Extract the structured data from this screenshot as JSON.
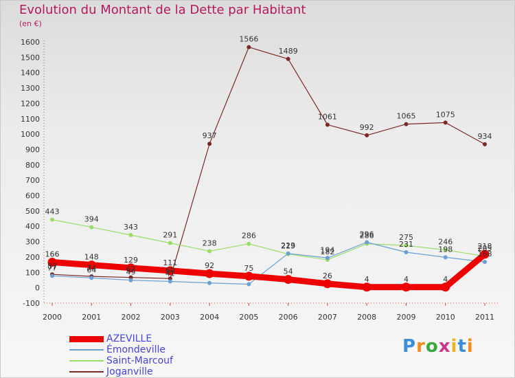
{
  "chart_data": {
    "type": "line",
    "title": "Evolution du Montant de la Dette par Habitant",
    "subtitle": "(en €)",
    "x": [
      "2000",
      "2001",
      "2002",
      "2003",
      "2004",
      "2005",
      "2006",
      "2007",
      "2008",
      "2009",
      "2010",
      "2011"
    ],
    "ylim": [
      -100,
      1600
    ],
    "yticks": [
      -100,
      0,
      100,
      200,
      300,
      400,
      500,
      600,
      700,
      800,
      900,
      1000,
      1100,
      1200,
      1300,
      1400,
      1500,
      1600
    ],
    "grid": false,
    "legend_position": "bottom-left",
    "series": [
      {
        "name": "AZEVILLE",
        "color": "#ee0000",
        "width": 9,
        "marker_r": 6,
        "labeled": true,
        "values": [
          166,
          148,
          129,
          111,
          92,
          75,
          54,
          26,
          4,
          4,
          4,
          218
        ]
      },
      {
        "name": "Émondeville",
        "color": "#6a9fd4",
        "width": 1.2,
        "marker_r": 3,
        "labeled": false,
        "values": [
          77,
          64,
          49,
          41,
          31,
          23,
          223,
          194,
          296,
          231,
          198,
          168
        ]
      },
      {
        "name": "Saint-Marcouf",
        "color": "#99dd66",
        "width": 1.2,
        "marker_r": 3,
        "labeled": true,
        "values": [
          443,
          394,
          343,
          291,
          238,
          286,
          219,
          182,
          286,
          275,
          246,
          205
        ]
      },
      {
        "name": "Joganville",
        "color": "#7a2828",
        "width": 1.2,
        "marker_r": 3,
        "labeled": true,
        "values": [
          87,
          74,
          67,
          60,
          937,
          1566,
          1489,
          1061,
          992,
          1065,
          1075,
          934
        ]
      }
    ],
    "extra_labels": [
      {
        "series": "Émondeville",
        "index": 0,
        "text": "77"
      },
      {
        "series": "Émondeville",
        "index": 1,
        "text": "64"
      },
      {
        "series": "Émondeville",
        "index": 2,
        "text": "49"
      },
      {
        "series": "Émondeville",
        "index": 3,
        "text": "41"
      },
      {
        "series": "Émondeville",
        "index": 6,
        "text": "223"
      },
      {
        "series": "Émondeville",
        "index": 7,
        "text": "194"
      },
      {
        "series": "Émondeville",
        "index": 8,
        "text": "296"
      },
      {
        "series": "Émondeville",
        "index": 9,
        "text": "231"
      },
      {
        "series": "Émondeville",
        "index": 10,
        "text": "198"
      },
      {
        "series": "Émondeville",
        "index": 11,
        "text": "168"
      }
    ]
  },
  "logo_text": "Proxiti"
}
